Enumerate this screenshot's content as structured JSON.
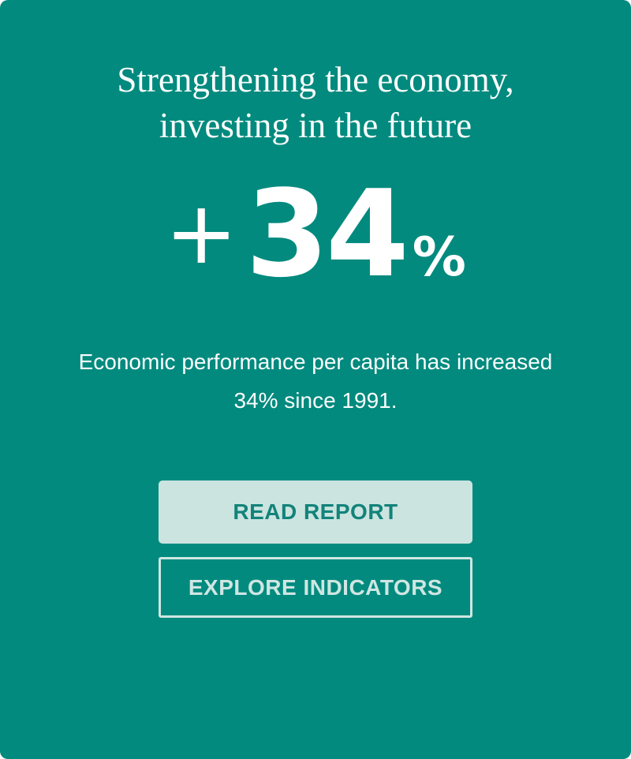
{
  "colors": {
    "background": "#028A7E",
    "button_fill": "#CBE4E0",
    "button_fill_text": "#12837A",
    "button_outline": "#CFE6E2",
    "text": "#FAFDFC"
  },
  "hero": {
    "title_line1": "Strengthening the economy,",
    "title_line2": "investing in the future",
    "stat": {
      "prefix": "+",
      "value": "34",
      "suffix": "%"
    },
    "description_line1": "Economic performance per capita has increased",
    "description_line2": "34% since 1991.",
    "buttons": {
      "primary_label": "READ REPORT",
      "secondary_label": "EXPLORE INDICATORS"
    }
  }
}
